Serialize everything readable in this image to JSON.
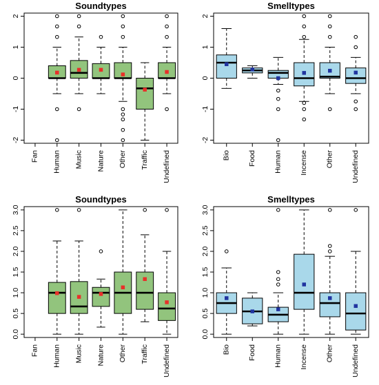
{
  "colors": {
    "sound_fill": "#92c47d",
    "smell_fill": "#a9d8ea",
    "sound_mean": "#e8302a",
    "smell_mean": "#2135a0",
    "line": "#000000"
  },
  "chart_data": [
    {
      "type": "box",
      "title": "Soundtypes",
      "color_key": "sound",
      "ylim": [
        -2.1,
        2.1
      ],
      "yticks": [
        "-2",
        "-1",
        "0",
        "1",
        "2"
      ],
      "ytick_values": [
        -2,
        -1,
        0,
        1,
        2
      ],
      "categories": [
        "Fan",
        "Human",
        "Music",
        "Nature",
        "Other",
        "Traffic",
        "Undefined"
      ],
      "boxes": [
        null,
        {
          "q1": 0,
          "median": 0,
          "q3": 0.4,
          "whislo": -0.5,
          "whishi": 1,
          "mean": 0.18,
          "outliers": [
            -2,
            -1,
            1.33,
            1.67,
            2
          ]
        },
        {
          "q1": 0,
          "median": 0.17,
          "q3": 0.57,
          "whislo": -0.5,
          "whishi": 1.33,
          "mean": 0.27,
          "outliers": [
            -1,
            1.67,
            2
          ]
        },
        {
          "q1": 0,
          "median": 0,
          "q3": 0.47,
          "whislo": -0.5,
          "whishi": 1,
          "mean": 0.27,
          "outliers": [
            1.33
          ]
        },
        {
          "q1": 0,
          "median": 0,
          "q3": 0.5,
          "whislo": -0.75,
          "whishi": 1,
          "mean": 0.12,
          "outliers": [
            -1,
            -1.17,
            -1.33,
            -1.67,
            -2,
            1.33,
            1.67,
            2
          ]
        },
        {
          "q1": -1,
          "median": -0.33,
          "q3": 0,
          "whislo": -2,
          "whishi": 0.5,
          "mean": -0.37,
          "outliers": []
        },
        {
          "q1": 0,
          "median": 0,
          "q3": 0.5,
          "whislo": -0.5,
          "whishi": 1,
          "mean": 0.2,
          "outliers": [
            -1,
            1.33,
            1.67,
            2
          ]
        }
      ]
    },
    {
      "type": "box",
      "title": "Smelltypes",
      "color_key": "smell",
      "ylim": [
        -2.1,
        2.1
      ],
      "yticks": [
        "-2",
        "-1",
        "0",
        "1",
        "2"
      ],
      "ytick_values": [
        -2,
        -1,
        0,
        1,
        2
      ],
      "categories": [
        "Bio",
        "Food",
        "Human",
        "Incense",
        "Other",
        "Undefined"
      ],
      "boxes": [
        {
          "q1": 0,
          "median": 0.5,
          "q3": 0.75,
          "whislo": -0.33,
          "whishi": 1.6,
          "mean": 0.45,
          "outliers": []
        },
        {
          "q1": 0.17,
          "median": 0.25,
          "q3": 0.33,
          "whislo": 0,
          "whishi": 0.4,
          "mean": 0.28,
          "outliers": []
        },
        {
          "q1": 0,
          "median": 0.17,
          "q3": 0.25,
          "whislo": -0.2,
          "whishi": 0.67,
          "mean": 0,
          "outliers": [
            -0.4,
            -0.67,
            -1,
            -2
          ]
        },
        {
          "q1": -0.25,
          "median": 0,
          "q3": 0.5,
          "whislo": -0.75,
          "whishi": 1.25,
          "mean": 0.17,
          "outliers": [
            -0.8,
            -1,
            -1.33,
            1.33,
            1.67,
            2
          ]
        },
        {
          "q1": 0,
          "median": 0.05,
          "q3": 0.5,
          "whislo": -0.5,
          "whishi": 1,
          "mean": 0.24,
          "outliers": [
            -1,
            1.33,
            1.67,
            2
          ]
        },
        {
          "q1": -0.17,
          "median": 0,
          "q3": 0.33,
          "whislo": -0.5,
          "whishi": 0.67,
          "mean": 0.18,
          "outliers": [
            -0.75,
            -1,
            1,
            1.33
          ]
        }
      ]
    },
    {
      "type": "box",
      "title": "Soundtypes",
      "color_key": "sound",
      "ylim": [
        -0.08,
        3.08
      ],
      "yticks": [
        "0.0",
        "0.5",
        "1.0",
        "1.5",
        "2.0",
        "2.5",
        "3.0"
      ],
      "ytick_values": [
        0,
        0.5,
        1,
        1.5,
        2,
        2.5,
        3
      ],
      "categories": [
        "Fan",
        "Human",
        "Music",
        "Nature",
        "Other",
        "Traffic",
        "Undefined"
      ],
      "boxes": [
        null,
        {
          "q1": 0.5,
          "median": 1,
          "q3": 1.25,
          "whislo": 0,
          "whishi": 2.25,
          "mean": 0.99,
          "outliers": [
            3
          ]
        },
        {
          "q1": 0.5,
          "median": 0.67,
          "q3": 1.27,
          "whislo": 0,
          "whishi": 2.25,
          "mean": 0.9,
          "outliers": [
            3
          ]
        },
        {
          "q1": 0.67,
          "median": 1,
          "q3": 1.13,
          "whislo": 0.17,
          "whishi": 1.33,
          "mean": 0.97,
          "outliers": [
            2
          ]
        },
        {
          "q1": 0.5,
          "median": 1,
          "q3": 1.5,
          "whislo": 0,
          "whishi": 3,
          "mean": 1.13,
          "outliers": []
        },
        {
          "q1": 0.6,
          "median": 1,
          "q3": 1.5,
          "whislo": 0.3,
          "whishi": 2.4,
          "mean": 1.33,
          "outliers": [
            3
          ]
        },
        {
          "q1": 0.33,
          "median": 0.62,
          "q3": 1,
          "whislo": 0,
          "whishi": 2,
          "mean": 0.77,
          "outliers": [
            3
          ]
        }
      ]
    },
    {
      "type": "box",
      "title": "Smelltypes",
      "color_key": "smell",
      "ylim": [
        -0.08,
        3.08
      ],
      "yticks": [
        "0.0",
        "0.5",
        "1.0",
        "1.5",
        "2.0",
        "2.5",
        "3.0"
      ],
      "ytick_values": [
        0,
        0.5,
        1,
        1.5,
        2,
        2.5,
        3
      ],
      "categories": [
        "Bio",
        "Food",
        "Human",
        "Incense",
        "Other",
        "Undefined"
      ],
      "boxes": [
        {
          "q1": 0.5,
          "median": 0.75,
          "q3": 1,
          "whislo": 0,
          "whishi": 1.6,
          "mean": 0.87,
          "outliers": [
            2
          ]
        },
        {
          "q1": 0.25,
          "median": 0.55,
          "q3": 0.87,
          "whislo": 0.2,
          "whishi": 1,
          "mean": 0.55,
          "outliers": []
        },
        {
          "q1": 0.3,
          "median": 0.47,
          "q3": 0.65,
          "whislo": 0,
          "whishi": 1,
          "mean": 0.6,
          "outliers": [
            1.2,
            1.33,
            1.5,
            3
          ]
        },
        {
          "q1": 0.6,
          "median": 1,
          "q3": 1.93,
          "whislo": 0,
          "whishi": 3,
          "mean": 1.2,
          "outliers": []
        },
        {
          "q1": 0.42,
          "median": 0.75,
          "q3": 1,
          "whislo": 0,
          "whishi": 1.88,
          "mean": 0.87,
          "outliers": [
            2,
            2.13,
            3
          ]
        },
        {
          "q1": 0.1,
          "median": 0.5,
          "q3": 1,
          "whislo": 0,
          "whishi": 2,
          "mean": 0.68,
          "outliers": [
            3
          ]
        }
      ]
    }
  ]
}
